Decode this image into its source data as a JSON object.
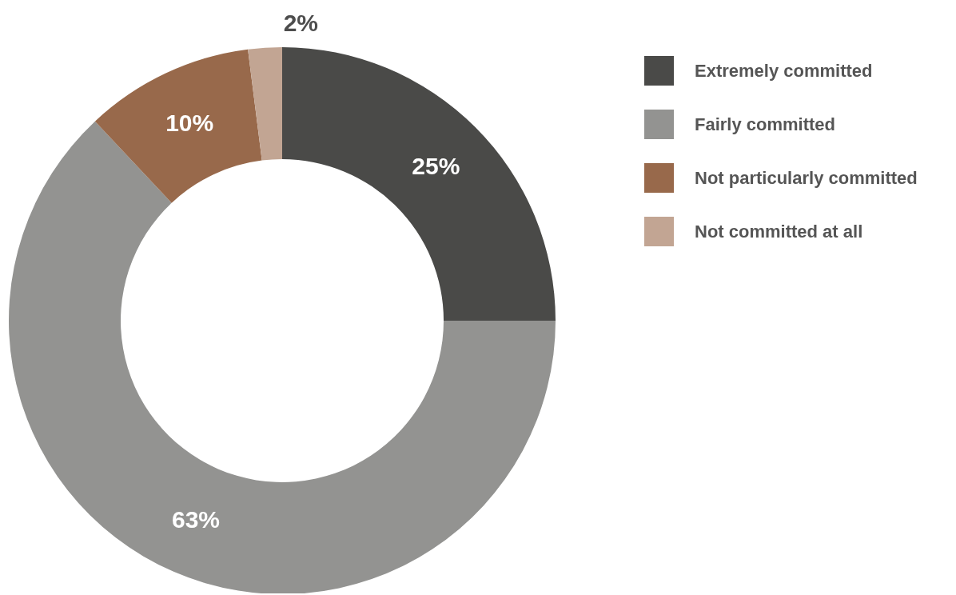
{
  "chart_data": {
    "type": "donut",
    "categories": [
      "Extremely committed",
      "Fairly committed",
      "Not particularly committed",
      "Not committed at all"
    ],
    "values": [
      25,
      63,
      10,
      2
    ],
    "colors": [
      "#4a4a48",
      "#939391",
      "#98694b",
      "#c2a593"
    ],
    "value_labels": [
      "25%",
      "63%",
      "10%",
      "2%"
    ],
    "legend": "right"
  }
}
